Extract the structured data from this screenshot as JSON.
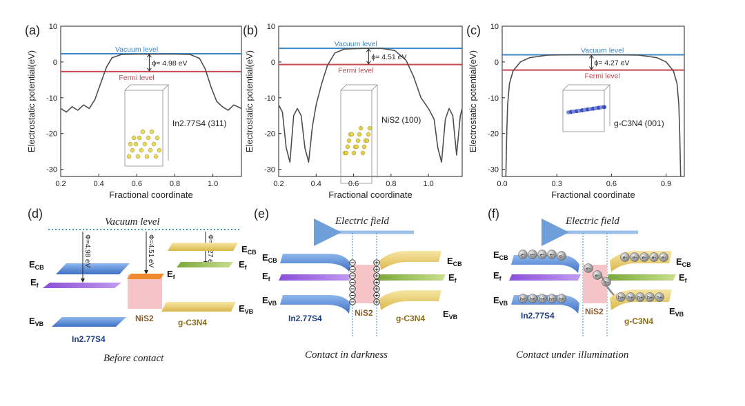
{
  "charts": [
    {
      "panel": "(a)",
      "type": "line",
      "xlabel": "Fractional coordinate",
      "ylabel": "Electrostatic potential(eV)",
      "xlim": [
        0.2,
        1.15
      ],
      "ylim": [
        -32,
        10
      ],
      "xticks": [
        "0.2",
        "0.4",
        "0.6",
        "0.8",
        "1.0"
      ],
      "xtick_values": [
        0.2,
        0.4,
        0.6,
        0.8,
        1.0
      ],
      "yticks": [
        "10",
        "0",
        "-10",
        "-20",
        "-30"
      ],
      "ytick_values": [
        10,
        0,
        -10,
        -20,
        -30
      ],
      "vacuum_label": "Vacuum level",
      "vacuum_value": 2.3,
      "fermi_label": "Fermi level",
      "fermi_value": -2.68,
      "phi_label": "ϕ= 4.98 eV",
      "phi_x": 0.72,
      "structure_label": "In2.77S4 (311)",
      "curve": [
        [
          0.2,
          -13
        ],
        [
          0.23,
          -14
        ],
        [
          0.26,
          -12.5
        ],
        [
          0.29,
          -13.5
        ],
        [
          0.32,
          -12
        ],
        [
          0.35,
          -13
        ],
        [
          0.38,
          -10.5
        ],
        [
          0.41,
          -6
        ],
        [
          0.44,
          -1.5
        ],
        [
          0.47,
          1.2
        ],
        [
          0.52,
          2.1
        ],
        [
          0.6,
          2.2
        ],
        [
          0.7,
          2.2
        ],
        [
          0.8,
          2.2
        ],
        [
          0.88,
          2.1
        ],
        [
          0.93,
          1
        ],
        [
          0.96,
          -2
        ],
        [
          0.99,
          -7
        ],
        [
          1.02,
          -11
        ],
        [
          1.05,
          -12.5
        ],
        [
          1.08,
          -13.5
        ],
        [
          1.11,
          -12
        ],
        [
          1.15,
          -13
        ]
      ]
    },
    {
      "panel": "(b)",
      "type": "line",
      "xlabel": "Fractional coordinate",
      "ylabel": "Electrostatic potential(eV)",
      "xlim": [
        0.2,
        1.18
      ],
      "ylim": [
        -32,
        10
      ],
      "xticks": [
        "0.2",
        "0.4",
        "0.6",
        "0.8",
        "1.0"
      ],
      "xtick_values": [
        0.2,
        0.4,
        0.6,
        0.8,
        1.0
      ],
      "yticks": [
        "10",
        "0",
        "-10",
        "-20",
        "-30"
      ],
      "ytick_values": [
        10,
        0,
        -10,
        -20,
        -30
      ],
      "vacuum_label": "Vacuum level",
      "vacuum_value": 3.8,
      "fermi_label": "Fermi level",
      "fermi_value": -0.71,
      "phi_label": "ϕ= 4.51 eV",
      "phi_x": 0.72,
      "structure_label": "NiS2 (100)",
      "curve": [
        [
          0.2,
          -12
        ],
        [
          0.22,
          -14
        ],
        [
          0.24,
          -24
        ],
        [
          0.26,
          -28
        ],
        [
          0.28,
          -15
        ],
        [
          0.3,
          -13
        ],
        [
          0.32,
          -15
        ],
        [
          0.34,
          -24
        ],
        [
          0.36,
          -28
        ],
        [
          0.38,
          -18
        ],
        [
          0.4,
          -12
        ],
        [
          0.43,
          -6
        ],
        [
          0.46,
          -1
        ],
        [
          0.5,
          2.5
        ],
        [
          0.55,
          3.6
        ],
        [
          0.65,
          3.8
        ],
        [
          0.75,
          3.8
        ],
        [
          0.82,
          3.2
        ],
        [
          0.88,
          0.5
        ],
        [
          0.92,
          -4
        ],
        [
          0.96,
          -10
        ],
        [
          1.0,
          -13
        ],
        [
          1.03,
          -16
        ],
        [
          1.05,
          -24
        ],
        [
          1.07,
          -28
        ],
        [
          1.09,
          -16
        ],
        [
          1.11,
          -13
        ],
        [
          1.13,
          -15
        ],
        [
          1.15,
          -26
        ],
        [
          1.17,
          -15
        ],
        [
          1.18,
          -13
        ]
      ]
    },
    {
      "panel": "(c)",
      "type": "line",
      "xlabel": "Fractional coordinate",
      "ylabel": "Electrostatic potential(eV)",
      "xlim": [
        0.0,
        1.0
      ],
      "ylim": [
        -32,
        10
      ],
      "xticks": [
        "0.0",
        "0.3",
        "0.6",
        "0.9"
      ],
      "xtick_values": [
        0.0,
        0.3,
        0.6,
        0.9
      ],
      "yticks": [
        "10",
        "0",
        "-10",
        "-20",
        "-30"
      ],
      "ytick_values": [
        10,
        0,
        -10,
        -20,
        -30
      ],
      "vacuum_label": "Vacuum level",
      "vacuum_value": 2.0,
      "fermi_label": "Fermi level",
      "fermi_value": -2.27,
      "phi_label": "ϕ= 4.27 eV",
      "phi_x": 0.5,
      "structure_label": "g-C3N4 (001)",
      "curve": [
        [
          0.02,
          -32
        ],
        [
          0.025,
          -20
        ],
        [
          0.03,
          -12
        ],
        [
          0.04,
          -6
        ],
        [
          0.06,
          -2.5
        ],
        [
          0.1,
          0
        ],
        [
          0.15,
          1.2
        ],
        [
          0.25,
          1.9
        ],
        [
          0.4,
          2.0
        ],
        [
          0.6,
          2.0
        ],
        [
          0.75,
          1.9
        ],
        [
          0.85,
          1.2
        ],
        [
          0.9,
          0
        ],
        [
          0.94,
          -2.5
        ],
        [
          0.96,
          -6
        ],
        [
          0.97,
          -12
        ],
        [
          0.975,
          -20
        ],
        [
          0.98,
          -32
        ]
      ]
    }
  ],
  "diagrams": {
    "d": {
      "panel": "(d)",
      "vacuum_level": "Vacuum level",
      "phi_in": "Φ=4.98 eV",
      "phi_nis": "Φ=4.51 eV",
      "phi_gcn": "Φ=4.27 eV",
      "e_cb": "E",
      "e_cb_sub": "CB",
      "e_f": "E",
      "e_f_sub": "f",
      "e_vb": "E",
      "e_vb_sub": "VB",
      "nis2": "NiS2",
      "gcn": "g-C3N4",
      "in2s": "In2.77S4",
      "caption": "Before contact"
    },
    "e": {
      "panel": "(e)",
      "field": "Electric field",
      "nis2": "NiS2",
      "gcn": "g-C3N4",
      "in2s": "In2.77S4",
      "caption": "Contact in darkness"
    },
    "f": {
      "panel": "(f)",
      "field": "Electric field",
      "nis2": "NiS2",
      "gcn": "g-C3N4",
      "in2s": "In2.77S4",
      "electron": "e-",
      "hole": "h+",
      "caption": "Contact under illumination"
    }
  },
  "colors": {
    "vacuum": "#3a86c6",
    "fermi": "#c8464f",
    "curve": "#4d4d4d",
    "cb_blue": "#5b8fd8",
    "ef_purple": "#9b5de5",
    "vb_blue": "#4b7fd0",
    "gcn_yellow": "#e8cd6a",
    "gcn_green": "#9bc24e",
    "nis_pink": "#f5b7bc",
    "nis_orange": "#f08a2c"
  }
}
